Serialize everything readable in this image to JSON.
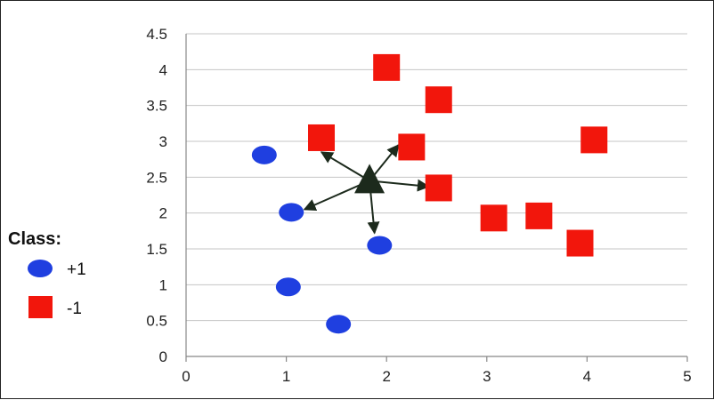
{
  "chart_data": {
    "type": "scatter",
    "title": "",
    "xlabel": "",
    "ylabel": "",
    "xlim": [
      0,
      5
    ],
    "ylim": [
      0,
      4.5
    ],
    "x_ticks": [
      "0",
      "1",
      "2",
      "3",
      "4",
      "5"
    ],
    "y_ticks": [
      "0",
      "0.5",
      "1",
      "1.5",
      "2",
      "2.5",
      "3",
      "3.5",
      "4",
      "4.5"
    ],
    "grid": "horizontal",
    "legend": {
      "title": "Class:",
      "placement": "left",
      "entries": [
        {
          "label": "+1",
          "marker": "circle",
          "color": "#1f3fe0"
        },
        {
          "label": "-1",
          "marker": "square",
          "color": "#f2160c"
        }
      ]
    },
    "series": [
      {
        "marker": "circle",
        "color": "#1f3fe0",
        "points": [
          [
            0.78,
            2.81
          ],
          [
            1.05,
            2.01
          ],
          [
            1.02,
            0.97
          ],
          [
            1.52,
            0.45
          ],
          [
            1.93,
            1.55
          ]
        ]
      },
      {
        "marker": "square",
        "color": "#f2160c",
        "points": [
          [
            1.35,
            3.05
          ],
          [
            2.0,
            4.03
          ],
          [
            2.52,
            3.58
          ],
          [
            2.25,
            2.92
          ],
          [
            2.52,
            2.35
          ],
          [
            3.07,
            1.93
          ],
          [
            3.52,
            1.96
          ],
          [
            3.93,
            1.58
          ],
          [
            4.07,
            3.02
          ]
        ]
      }
    ],
    "query_point": {
      "marker": "triangle",
      "color": "#1c2a1c",
      "x": 1.83,
      "y": 2.45
    },
    "neighbor_arrows": [
      [
        1.35,
        2.85
      ],
      [
        2.12,
        2.95
      ],
      [
        2.42,
        2.37
      ],
      [
        1.18,
        2.05
      ],
      [
        1.88,
        1.72
      ]
    ]
  }
}
